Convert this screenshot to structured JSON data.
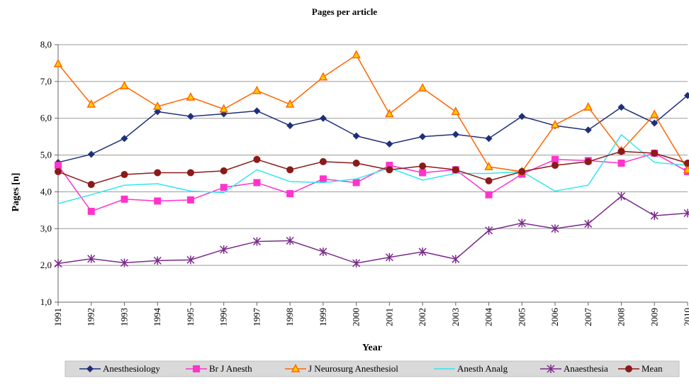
{
  "chart_data": {
    "type": "line",
    "title": "Pages per article",
    "xlabel": "Year",
    "ylabel": "Pages [n]",
    "ylim": [
      1.0,
      8.0
    ],
    "y_ticks": [
      "1,0",
      "2,0",
      "3,0",
      "4,0",
      "5,0",
      "6,0",
      "7,0",
      "8,0"
    ],
    "y_tick_values": [
      1,
      2,
      3,
      4,
      5,
      6,
      7,
      8
    ],
    "categories": [
      "1991",
      "1992",
      "1993",
      "1994",
      "1995",
      "1996",
      "1997",
      "1998",
      "1999",
      "2000",
      "2001",
      "2002",
      "2003",
      "2004",
      "2005",
      "2006",
      "2007",
      "2008",
      "2009",
      "2010"
    ],
    "grid": "horizontal",
    "legend_position": "bottom",
    "series": [
      {
        "name": "Anesthesiology",
        "color": "#1f2f7a",
        "marker": "diamond",
        "values": [
          4.8,
          5.02,
          5.45,
          6.18,
          6.05,
          6.12,
          6.2,
          5.8,
          6.0,
          5.52,
          5.3,
          5.5,
          5.56,
          5.45,
          6.05,
          5.8,
          5.68,
          6.3,
          5.87,
          6.62
        ]
      },
      {
        "name": "Br J Anesth",
        "color": "#ff33cc",
        "marker": "square",
        "values": [
          4.72,
          3.47,
          3.8,
          3.75,
          3.78,
          4.12,
          4.25,
          3.95,
          4.35,
          4.25,
          4.72,
          4.52,
          4.6,
          3.92,
          4.48,
          4.88,
          4.85,
          4.78,
          5.05,
          4.55
        ]
      },
      {
        "name": "J Neurosurg Anesthesiol",
        "color": "#ff6600",
        "marker": "triangle",
        "marker_fill": "#ffcc00",
        "values": [
          7.48,
          6.38,
          6.88,
          6.32,
          6.57,
          6.25,
          6.75,
          6.38,
          7.12,
          7.72,
          6.12,
          6.82,
          6.18,
          4.68,
          4.55,
          5.82,
          6.3,
          5.12,
          6.1,
          4.6
        ]
      },
      {
        "name": "Anesth Analg",
        "color": "#33e6f0",
        "marker": "none",
        "values": [
          3.68,
          3.92,
          4.18,
          4.22,
          4.02,
          3.98,
          4.6,
          4.28,
          4.25,
          4.35,
          4.65,
          4.32,
          4.5,
          4.5,
          4.55,
          4.02,
          4.18,
          5.55,
          4.8,
          4.72
        ]
      },
      {
        "name": "Anaesthesia",
        "color": "#7a2a8a",
        "marker": "asterisk",
        "values": [
          2.05,
          2.18,
          2.07,
          2.13,
          2.15,
          2.43,
          2.65,
          2.67,
          2.37,
          2.06,
          2.22,
          2.37,
          2.17,
          2.95,
          3.15,
          3.0,
          3.13,
          3.88,
          3.35,
          3.42
        ]
      },
      {
        "name": "Mean",
        "color": "#8b1a1a",
        "marker": "circle",
        "values": [
          4.55,
          4.2,
          4.47,
          4.52,
          4.52,
          4.57,
          4.88,
          4.6,
          4.82,
          4.78,
          4.6,
          4.7,
          4.6,
          4.3,
          4.55,
          4.72,
          4.82,
          5.1,
          5.05,
          4.78
        ]
      }
    ]
  }
}
